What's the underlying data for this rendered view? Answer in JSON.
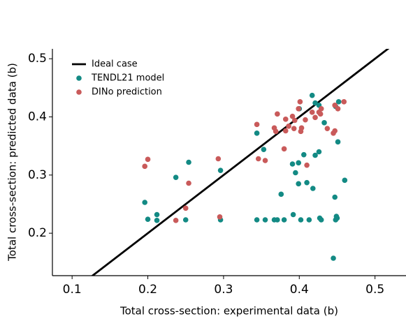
{
  "chart_data": {
    "type": "scatter",
    "xlabel": "Total cross-section: experimental data (b)",
    "ylabel": "Total cross-section: predicted data (b)",
    "xlim": [
      0.074,
      0.54
    ],
    "ylim": [
      0.127,
      0.517
    ],
    "xticks": [
      0.1,
      0.2,
      0.3,
      0.4,
      0.5
    ],
    "yticks": [
      0.2,
      0.3,
      0.4,
      0.5
    ],
    "legend": "upper left",
    "series": [
      {
        "name": "Ideal case",
        "color": "#000000",
        "type": "line",
        "x": [
          0.074,
          0.54
        ],
        "values": [
          0.074,
          0.54
        ]
      },
      {
        "name": "TENDL21 model",
        "color": "#138a84",
        "type": "scatter",
        "x": [
          0.196,
          0.2,
          0.212,
          0.212,
          0.237,
          0.25,
          0.254,
          0.296,
          0.296,
          0.344,
          0.344,
          0.353,
          0.355,
          0.367,
          0.371,
          0.376,
          0.38,
          0.392,
          0.391,
          0.395,
          0.399,
          0.4,
          0.399,
          0.402,
          0.406,
          0.41,
          0.413,
          0.418,
          0.421,
          0.426,
          0.427,
          0.429,
          0.433,
          0.445,
          0.447,
          0.448,
          0.449,
          0.45,
          0.451,
          0.46,
          0.417,
          0.421,
          0.448,
          0.452,
          0.426
        ],
        "values": [
          0.253,
          0.224,
          0.232,
          0.222,
          0.296,
          0.223,
          0.322,
          0.308,
          0.223,
          0.372,
          0.223,
          0.344,
          0.223,
          0.223,
          0.223,
          0.267,
          0.223,
          0.232,
          0.319,
          0.304,
          0.321,
          0.414,
          0.285,
          0.223,
          0.335,
          0.287,
          0.223,
          0.277,
          0.334,
          0.34,
          0.226,
          0.223,
          0.39,
          0.157,
          0.262,
          0.223,
          0.229,
          0.226,
          0.357,
          0.291,
          0.437,
          0.424,
          0.418,
          0.426,
          0.42
        ]
      },
      {
        "name": "DINo prediction",
        "color": "#c95a5a",
        "type": "scatter",
        "x": [
          0.196,
          0.2,
          0.237,
          0.25,
          0.254,
          0.293,
          0.295,
          0.344,
          0.346,
          0.355,
          0.367,
          0.371,
          0.38,
          0.382,
          0.386,
          0.391,
          0.393,
          0.394,
          0.399,
          0.401,
          0.402,
          0.403,
          0.408,
          0.41,
          0.417,
          0.421,
          0.426,
          0.428,
          0.429,
          0.437,
          0.445,
          0.447,
          0.447,
          0.451,
          0.459,
          0.382,
          0.369
        ],
        "values": [
          0.315,
          0.327,
          0.222,
          0.243,
          0.286,
          0.328,
          0.228,
          0.387,
          0.328,
          0.325,
          0.381,
          0.405,
          0.345,
          0.396,
          0.384,
          0.401,
          0.38,
          0.394,
          0.414,
          0.426,
          0.375,
          0.381,
          0.395,
          0.317,
          0.408,
          0.399,
          0.408,
          0.405,
          0.414,
          0.38,
          0.372,
          0.376,
          0.42,
          0.414,
          0.426,
          0.376,
          0.375
        ]
      }
    ]
  }
}
